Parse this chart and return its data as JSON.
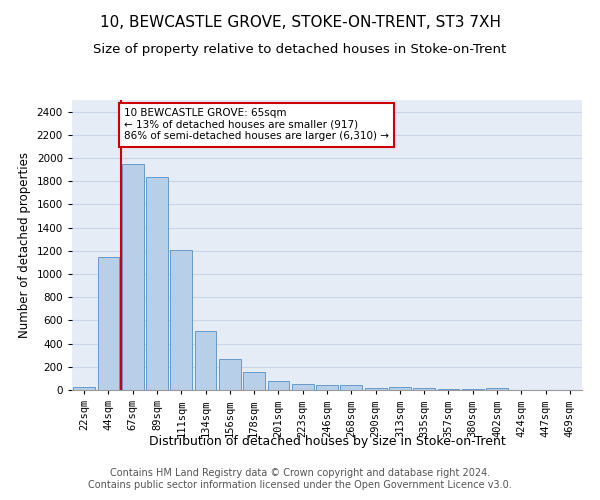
{
  "title": "10, BEWCASTLE GROVE, STOKE-ON-TRENT, ST3 7XH",
  "subtitle": "Size of property relative to detached houses in Stoke-on-Trent",
  "xlabel": "Distribution of detached houses by size in Stoke-on-Trent",
  "ylabel": "Number of detached properties",
  "categories": [
    "22sqm",
    "44sqm",
    "67sqm",
    "89sqm",
    "111sqm",
    "134sqm",
    "156sqm",
    "178sqm",
    "201sqm",
    "223sqm",
    "246sqm",
    "268sqm",
    "290sqm",
    "313sqm",
    "335sqm",
    "357sqm",
    "380sqm",
    "402sqm",
    "424sqm",
    "447sqm",
    "469sqm"
  ],
  "values": [
    30,
    1150,
    1950,
    1840,
    1210,
    510,
    265,
    155,
    80,
    50,
    45,
    40,
    20,
    25,
    15,
    10,
    5,
    20,
    0,
    0,
    0
  ],
  "bar_color": "#b8cfe8",
  "bar_edge_color": "#6699cc",
  "vline_color": "#cc0000",
  "vline_x_index": 2,
  "annotation_box_color": "#ffffff",
  "annotation_box_edge": "#cc0000",
  "marker_label": "10 BEWCASTLE GROVE: 65sqm",
  "marker_pct_smaller": "13% of detached houses are smaller (917)",
  "marker_pct_larger": "86% of semi-detached houses are larger (6,310)",
  "ylim": [
    0,
    2500
  ],
  "yticks": [
    0,
    200,
    400,
    600,
    800,
    1000,
    1200,
    1400,
    1600,
    1800,
    2000,
    2200,
    2400
  ],
  "grid_color": "#c8d4e8",
  "background_color": "#e6ecf5",
  "footer_line1": "Contains HM Land Registry data © Crown copyright and database right 2024.",
  "footer_line2": "Contains public sector information licensed under the Open Government Licence v3.0.",
  "title_fontsize": 11,
  "subtitle_fontsize": 9.5,
  "xlabel_fontsize": 9,
  "ylabel_fontsize": 8.5,
  "tick_fontsize": 7.5,
  "footer_fontsize": 7
}
